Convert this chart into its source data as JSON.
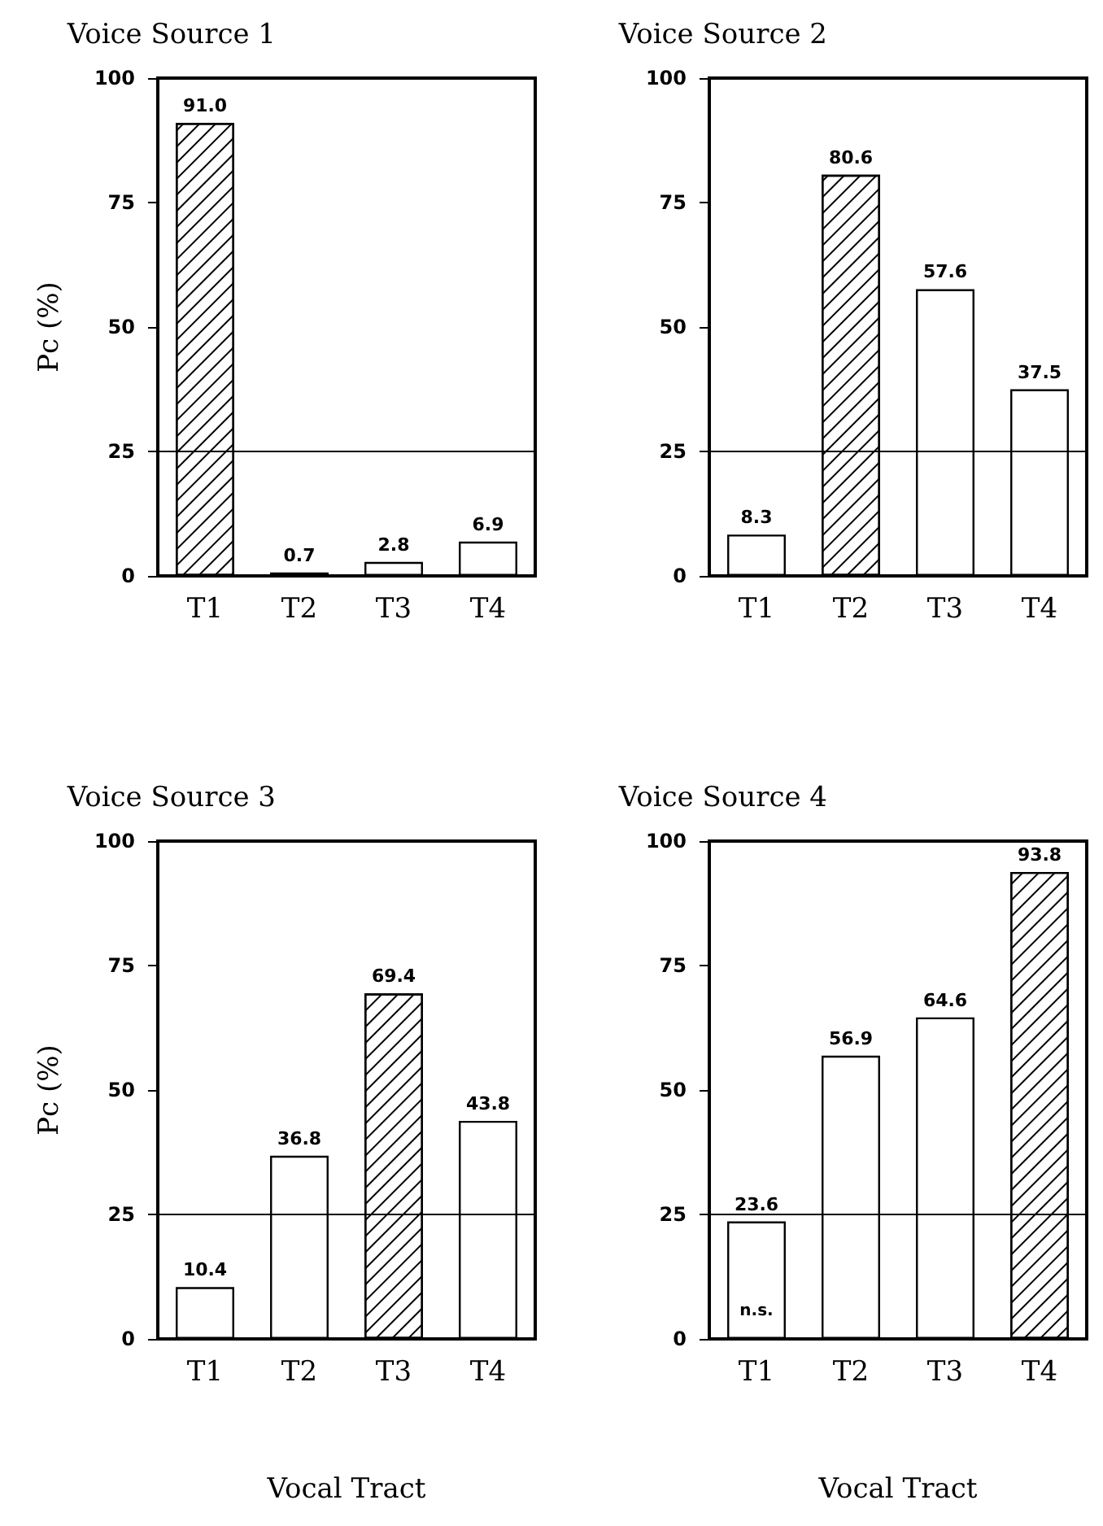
{
  "chart_data": [
    {
      "type": "bar",
      "title": "Voice Source 1",
      "ylabel": "Pc (%)",
      "categories": [
        "T1",
        "T2",
        "T3",
        "T4"
      ],
      "values": [
        91.0,
        0.7,
        2.8,
        6.9
      ],
      "value_labels": [
        "91.0",
        "0.7",
        "2.8",
        "6.9"
      ],
      "colors": [
        "#000000",
        "#ffffff",
        "#ffffff",
        "#ffffff"
      ],
      "ylim": [
        0,
        100
      ],
      "yticks": [
        0,
        25,
        50,
        75,
        100
      ],
      "ref_lines": [
        {
          "axis": "y",
          "value": 25
        }
      ],
      "grid": false
    },
    {
      "type": "bar",
      "title": "Voice Source 2",
      "categories": [
        "T1",
        "T2",
        "T3",
        "T4"
      ],
      "values": [
        8.3,
        80.6,
        57.6,
        37.5
      ],
      "value_labels": [
        "8.3",
        "80.6",
        "57.6",
        "37.5"
      ],
      "colors": [
        "#ffffff",
        "#000000",
        "#ffffff",
        "#ffffff"
      ],
      "ylim": [
        0,
        100
      ],
      "yticks": [
        0,
        25,
        50,
        75,
        100
      ],
      "ref_lines": [
        {
          "axis": "y",
          "value": 25
        }
      ],
      "grid": false
    },
    {
      "type": "bar",
      "title": "Voice Source 3",
      "ylabel": "Pc (%)",
      "xlabel": "Vocal Tract",
      "categories": [
        "T1",
        "T2",
        "T3",
        "T4"
      ],
      "values": [
        10.4,
        36.8,
        69.4,
        43.8
      ],
      "value_labels": [
        "10.4",
        "36.8",
        "69.4",
        "43.8"
      ],
      "colors": [
        "#ffffff",
        "#ffffff",
        "#000000",
        "#ffffff"
      ],
      "ylim": [
        0,
        100
      ],
      "yticks": [
        0,
        25,
        50,
        75,
        100
      ],
      "ref_lines": [
        {
          "axis": "y",
          "value": 25
        }
      ],
      "grid": false
    },
    {
      "type": "bar",
      "title": "Voice Source 4",
      "xlabel": "Vocal Tract",
      "categories": [
        "T1",
        "T2",
        "T3",
        "T4"
      ],
      "values": [
        23.6,
        56.9,
        64.6,
        93.8
      ],
      "value_labels": [
        "23.6",
        "56.9",
        "64.6",
        "93.8"
      ],
      "colors": [
        "#ffffff",
        "#ffffff",
        "#ffffff",
        "#000000"
      ],
      "ylim": [
        0,
        100
      ],
      "yticks": [
        0,
        25,
        50,
        75,
        100
      ],
      "ref_lines": [
        {
          "axis": "y",
          "value": 25
        }
      ],
      "annotations": [
        "n.s."
      ],
      "grid": false
    }
  ]
}
